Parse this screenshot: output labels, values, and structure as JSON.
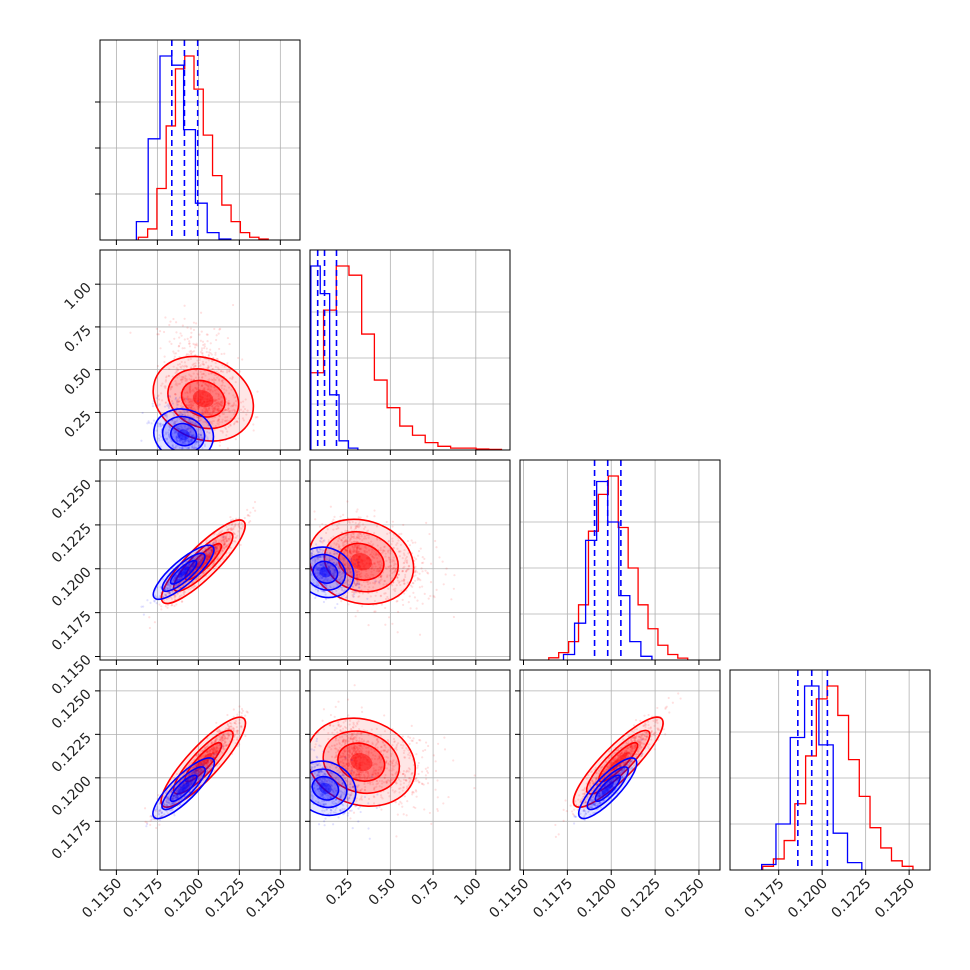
{
  "chart_data": {
    "type": "corner",
    "parameters": [
      "p1",
      "p2",
      "p3",
      "p4"
    ],
    "ranges": [
      [
        0.114,
        0.1262
      ],
      [
        0.03,
        1.2
      ],
      [
        0.1148,
        0.1262
      ],
      [
        0.1147,
        0.1262
      ]
    ],
    "x_ticks": {
      "p1": [
        "0.1150",
        "0.1175",
        "0.1200",
        "0.1225",
        "0.1250"
      ],
      "p2": [
        "0.25",
        "0.50",
        "0.75",
        "1.00"
      ],
      "p3": [
        "0.1150",
        "0.1175",
        "0.1200",
        "0.1225",
        "0.1250"
      ],
      "p4": [
        "0.1175",
        "0.1200",
        "0.1225",
        "0.1250"
      ]
    },
    "y_ticks": {
      "p2": [
        "0.25",
        "0.50",
        "0.75",
        "1.00"
      ],
      "p3": [
        "0.1150",
        "0.1175",
        "0.1200",
        "0.1225",
        "0.1250"
      ],
      "p4": [
        "0.1175",
        "0.1200",
        "0.1225",
        "0.1250"
      ]
    },
    "grid": true,
    "series": [
      {
        "color": "#ff0000",
        "means": [
          0.1203,
          0.33,
          0.1204,
          0.1209
        ],
        "sigmas": [
          0.0011,
          0.13,
          0.0011,
          0.0012
        ],
        "histograms": [
          [
            0.015,
            0.06,
            0.28,
            0.62,
            0.93,
            1.0,
            0.82,
            0.57,
            0.35,
            0.19,
            0.1,
            0.04,
            0.015,
            0.005
          ],
          [
            0.42,
            0.76,
            1.0,
            0.95,
            0.63,
            0.38,
            0.23,
            0.13,
            0.08,
            0.04,
            0.02,
            0.01,
            0.01,
            0.005,
            0.003
          ],
          [
            0.012,
            0.04,
            0.1,
            0.3,
            0.7,
            0.9,
            1.0,
            0.72,
            0.5,
            0.3,
            0.17,
            0.08,
            0.03,
            0.01
          ],
          [
            0.02,
            0.06,
            0.16,
            0.36,
            0.62,
            0.93,
            1.0,
            0.84,
            0.6,
            0.4,
            0.23,
            0.12,
            0.05,
            0.02
          ]
        ]
      },
      {
        "color": "#0000ff",
        "means": [
          0.1191,
          0.12,
          0.1198,
          0.1194
        ],
        "sigmas": [
          0.0008,
          0.06,
          0.0007,
          0.0008
        ],
        "histograms": [
          [
            0.1,
            0.55,
            1.0,
            0.95,
            0.6,
            0.2,
            0.04,
            0.005
          ],
          [
            1.0,
            0.85,
            0.3,
            0.05,
            0.01
          ],
          [
            0.03,
            0.2,
            0.65,
            0.97,
            0.75,
            0.35,
            0.1,
            0.02
          ],
          [
            0.03,
            0.25,
            0.72,
            1.0,
            0.68,
            0.2,
            0.04
          ]
        ],
        "quantile_lines": [
          [
            0.11838,
            0.11915,
            0.11996
          ],
          [
            0.075,
            0.115,
            0.185
          ],
          [
            0.11905,
            0.1198,
            0.12055
          ],
          [
            0.1186,
            0.1194,
            0.1203
          ]
        ]
      }
    ]
  }
}
